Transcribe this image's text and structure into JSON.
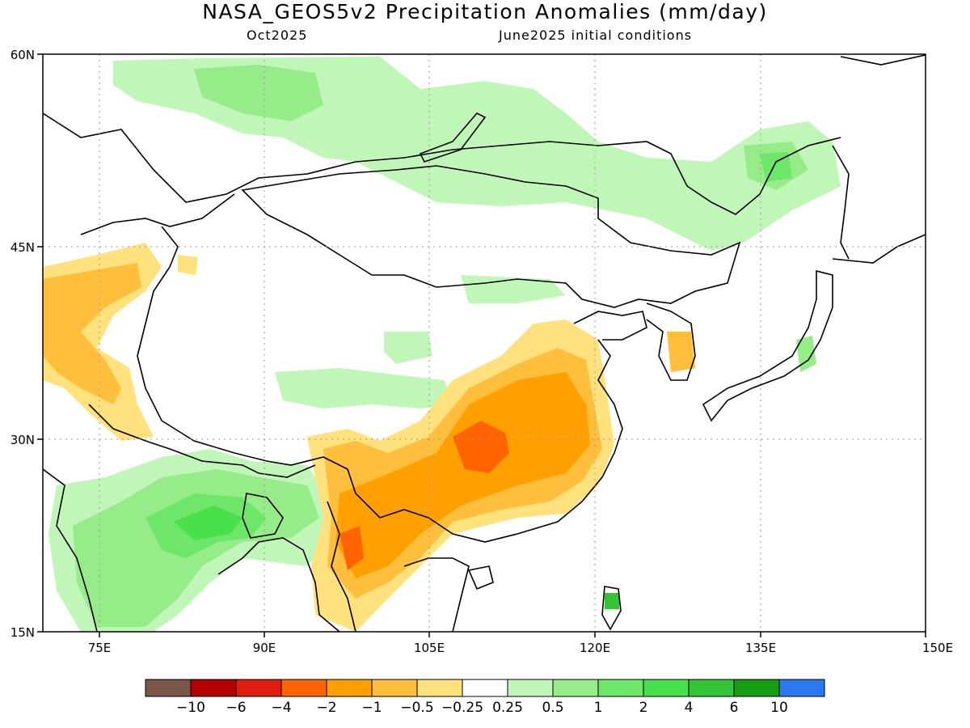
{
  "title": "NASA_GEOS5v2 Precipitation Anomalies (mm/day)",
  "subtitle_left": "Oct2025",
  "subtitle_right": "June2025 initial conditions",
  "axes": {
    "lon_labels": [
      "75E",
      "90E",
      "105E",
      "120E",
      "135E",
      "150E"
    ],
    "lat_labels": [
      "60N",
      "45N",
      "30N",
      "15N"
    ]
  },
  "colorbar": {
    "colors": [
      "#7a5549",
      "#b40000",
      "#e01e10",
      "#ff6400",
      "#ffa000",
      "#ffbe3c",
      "#ffe17d",
      "#ffffff",
      "#c0f7b8",
      "#96ec88",
      "#6ee66a",
      "#48e04b",
      "#34c438",
      "#149e14",
      "#2a78f0"
    ],
    "labels": [
      "-10",
      "-6",
      "-4",
      "-2",
      "-1",
      "-0.5",
      "-0.25",
      "0.25",
      "0.5",
      "1",
      "2",
      "4",
      "6",
      "10"
    ]
  },
  "anomaly_colors": {
    "dry_strong": "#ff6400",
    "dry_moderate": "#ffa000",
    "dry_light": "#ffbe3c",
    "dry_weak": "#ffe17d",
    "wet_weak": "#c0f7b8",
    "wet_light": "#96ec88",
    "wet_moderate": "#6ee66a",
    "wet_strong": "#48e04b",
    "wet_very_strong": "#34c438"
  }
}
